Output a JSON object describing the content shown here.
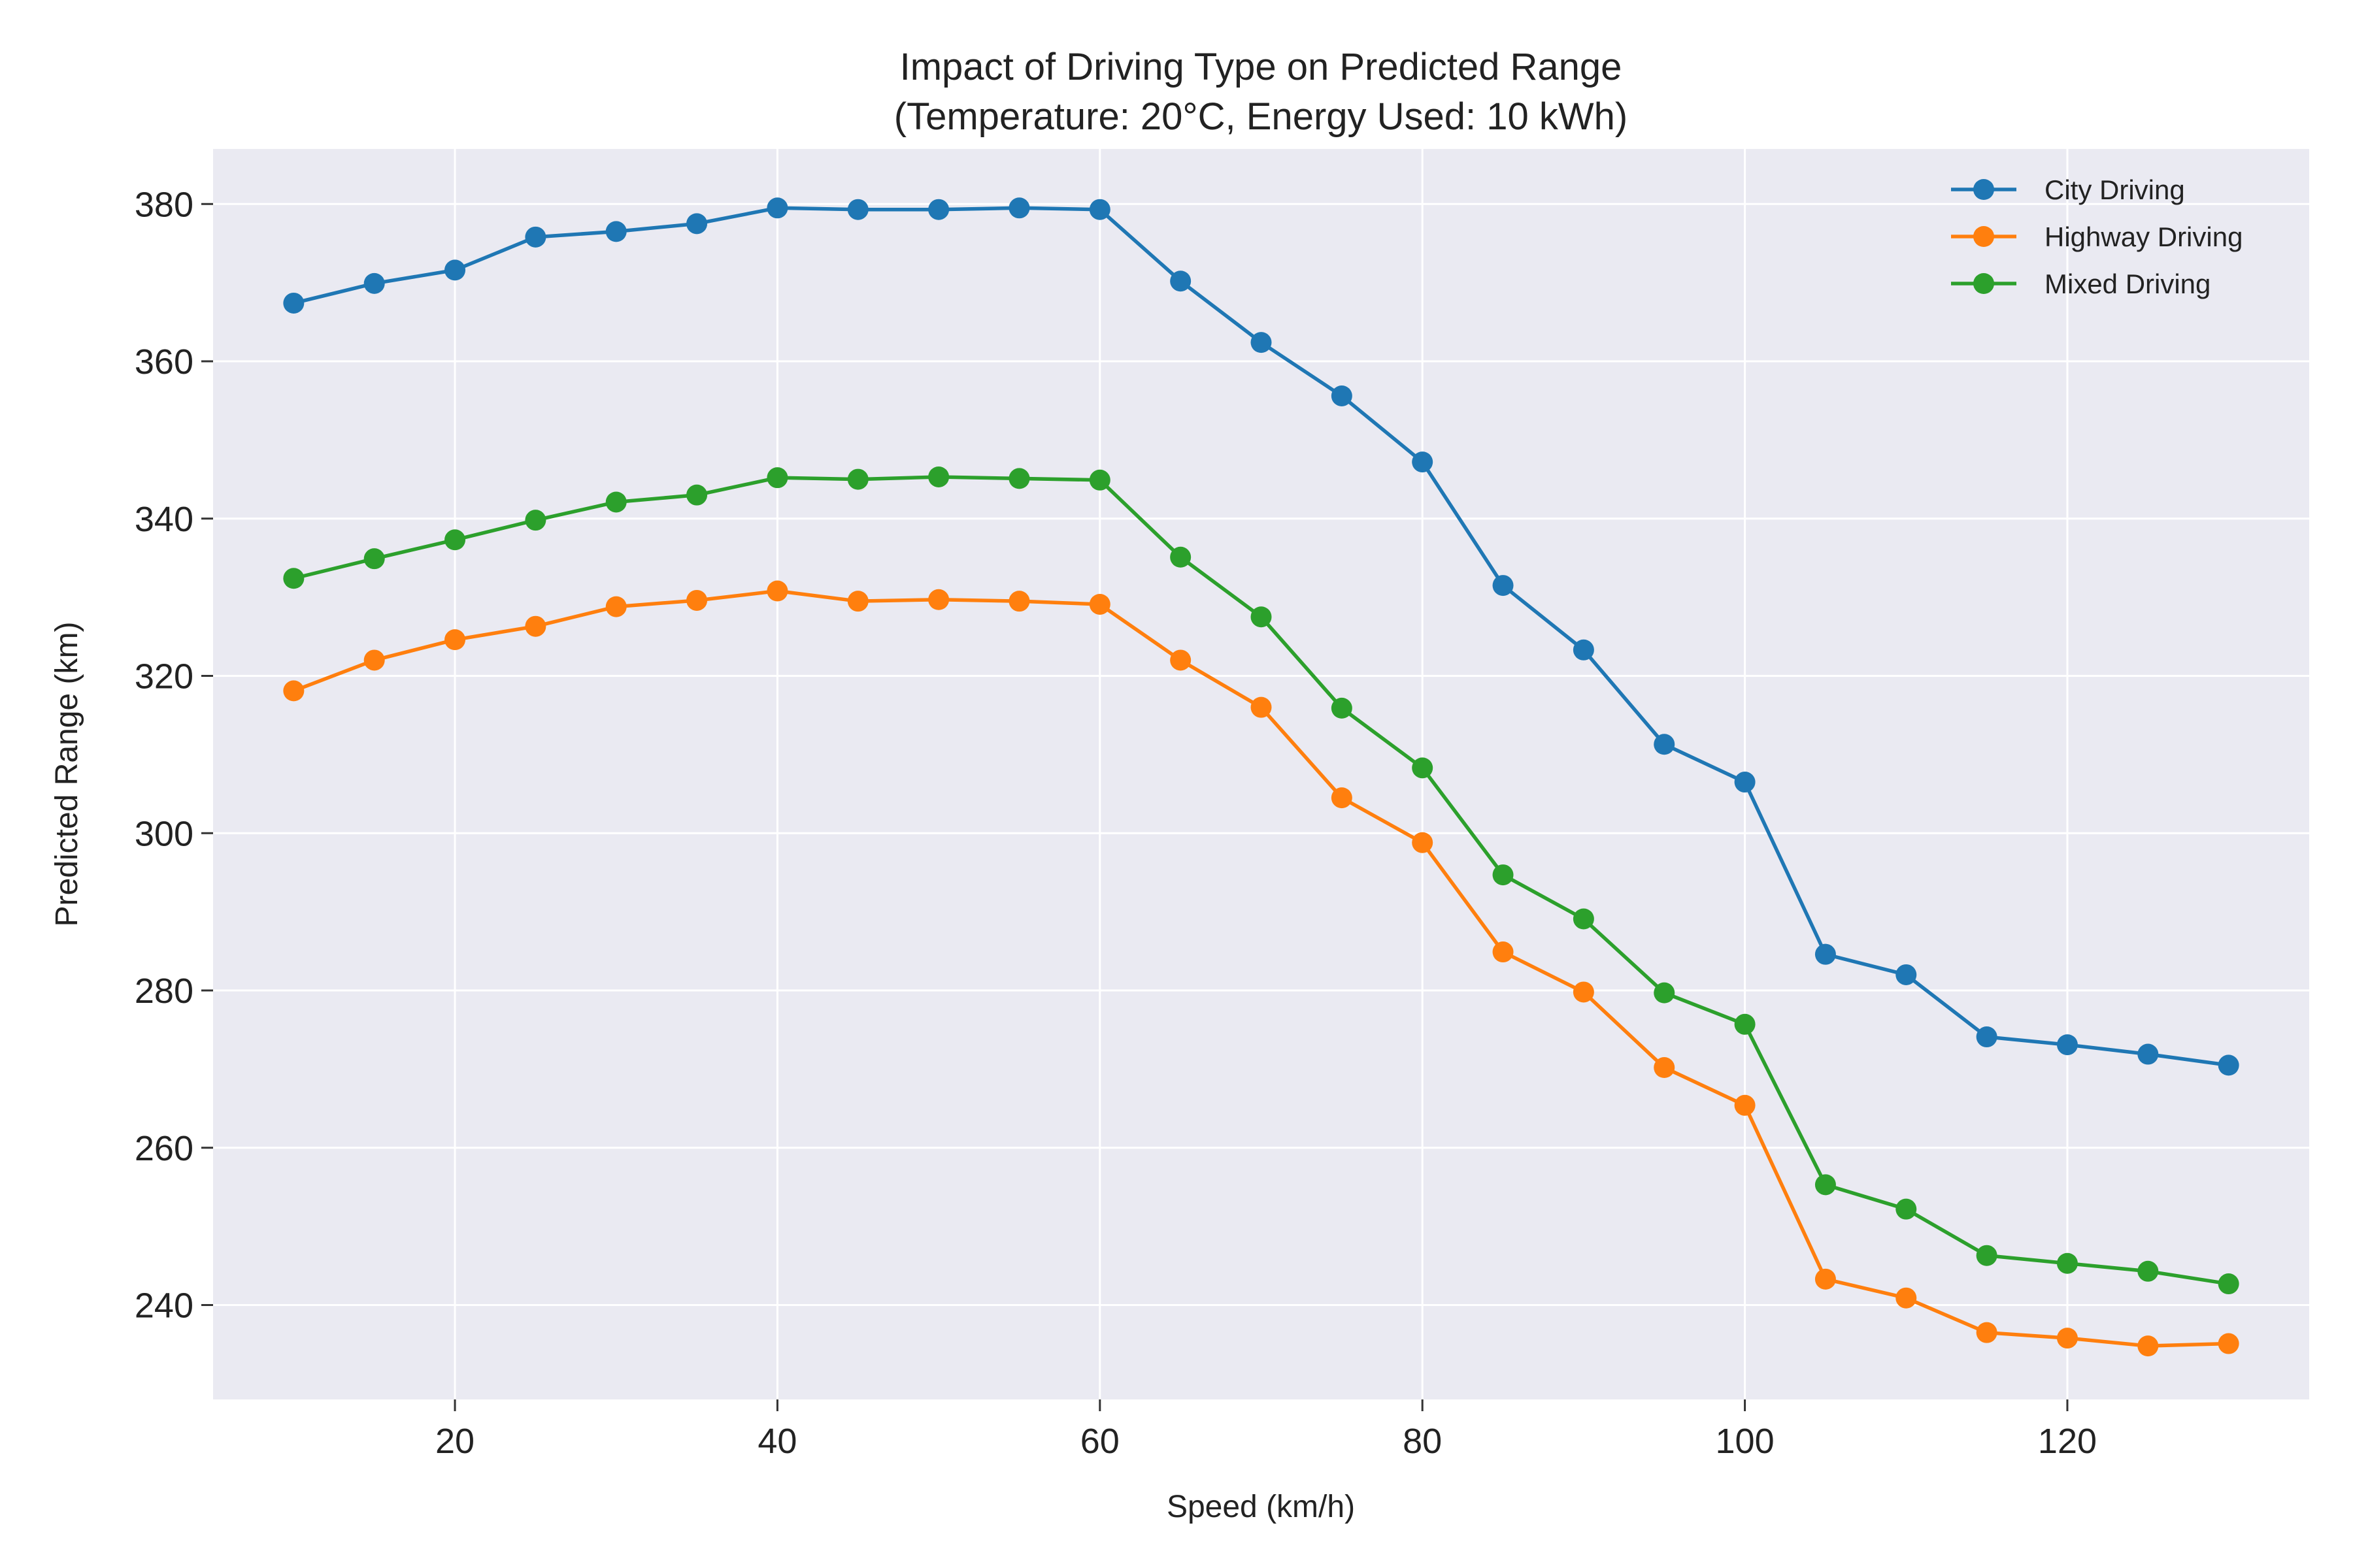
{
  "chart_data": {
    "type": "line",
    "title": [
      "Impact of Driving Type on Predicted Range",
      "(Temperature: 20°C, Energy Used: 10 kWh)"
    ],
    "xlabel": "Speed (km/h)",
    "ylabel": "Predicted Range (km)",
    "xlim": [
      5,
      135
    ],
    "ylim": [
      228,
      387
    ],
    "xticks": [
      20,
      40,
      60,
      80,
      100,
      120
    ],
    "yticks": [
      240,
      260,
      280,
      300,
      320,
      340,
      360,
      380
    ],
    "grid": true,
    "legend_position": "top-right",
    "background": "#eaeaf2",
    "x": [
      10,
      15,
      20,
      25,
      30,
      35,
      40,
      45,
      50,
      55,
      60,
      65,
      70,
      75,
      80,
      85,
      90,
      95,
      100,
      105,
      110,
      115,
      120,
      125,
      130
    ],
    "series": [
      {
        "name": "City Driving",
        "color": "#1f77b4",
        "values": [
          367.4,
          369.9,
          371.6,
          375.8,
          376.5,
          377.5,
          379.5,
          379.3,
          379.3,
          379.5,
          379.3,
          370.2,
          362.4,
          355.6,
          347.2,
          331.5,
          323.3,
          311.3,
          306.5,
          284.6,
          282.0,
          274.1,
          273.1,
          271.9,
          270.5
        ]
      },
      {
        "name": "Highway Driving",
        "color": "#ff7f0e",
        "values": [
          318.1,
          322.0,
          324.6,
          326.3,
          328.8,
          329.6,
          330.8,
          329.5,
          329.7,
          329.5,
          329.1,
          322.0,
          316.0,
          304.5,
          298.8,
          284.9,
          279.8,
          270.2,
          265.4,
          243.3,
          240.9,
          236.5,
          235.8,
          234.8,
          235.1
        ]
      },
      {
        "name": "Mixed Driving",
        "color": "#2ca02c",
        "values": [
          332.4,
          334.9,
          337.3,
          339.8,
          342.1,
          343.0,
          345.2,
          345.0,
          345.3,
          345.1,
          344.9,
          335.1,
          327.5,
          315.9,
          308.3,
          294.7,
          289.1,
          279.7,
          275.7,
          255.3,
          252.2,
          246.3,
          245.3,
          244.3,
          242.7
        ]
      }
    ]
  }
}
